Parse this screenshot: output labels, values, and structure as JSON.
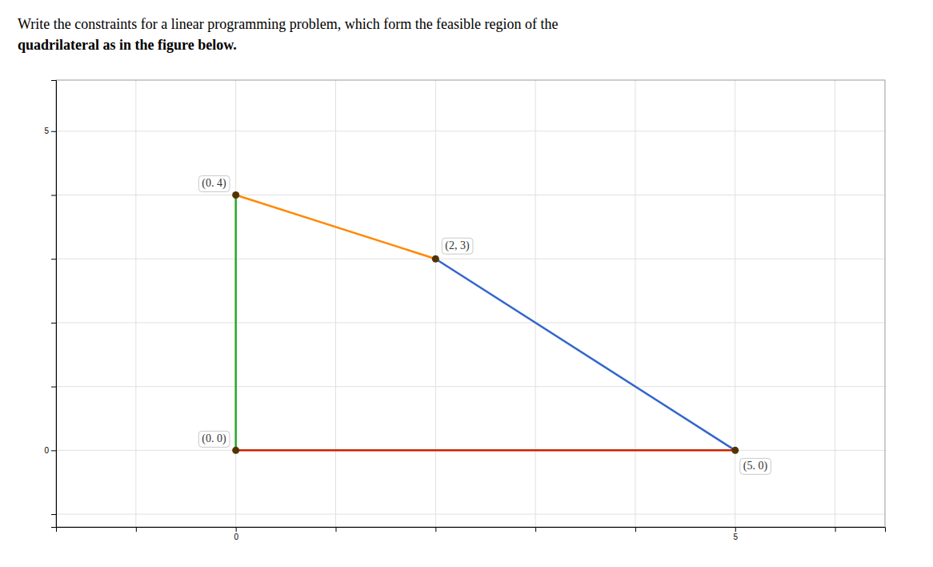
{
  "chart_data": {
    "type": "line",
    "title": "Write the constraints for a linear programming problem, which form the feasible region of the",
    "subtitle": "quadrilateral as in the figure below.",
    "series": [
      {
        "x": [
          0,
          0
        ],
        "values": [
          4,
          0
        ],
        "color": "#22aa22"
      },
      {
        "x": [
          0,
          5
        ],
        "values": [
          0,
          0
        ],
        "color": "#cc2200"
      },
      {
        "x": [
          5,
          2
        ],
        "values": [
          0,
          3
        ],
        "color": "#3366cc"
      },
      {
        "x": [
          2,
          0
        ],
        "values": [
          3,
          4
        ],
        "color": "#ff8800"
      },
      {
        "type": "scatter",
        "x": [
          0,
          2,
          5,
          0
        ],
        "values": [
          4,
          3,
          0,
          0
        ],
        "color": "#553300"
      }
    ],
    "annotations": [
      {
        "text": "(0. 4)",
        "x": 0,
        "y": 4
      },
      {
        "text": "(2, 3)",
        "x": 2,
        "y": 3
      },
      {
        "text": "(5. 0)",
        "x": 5,
        "y": 0
      },
      {
        "text": "(0. 0)",
        "x": 0,
        "y": 0
      }
    ],
    "xlim": [
      -1.8,
      6.5
    ],
    "ylim": [
      -1.2,
      5.8
    ],
    "xticks": [
      {
        "value": -1,
        "label": null
      },
      0,
      {
        "value": 1,
        "label": null
      },
      {
        "value": 2,
        "label": null
      },
      {
        "value": 3,
        "label": null
      },
      {
        "value": 4,
        "label": null
      },
      5,
      {
        "value": 6,
        "label": null
      }
    ],
    "yticks": [
      {
        "value": -1,
        "label": null
      },
      0,
      {
        "value": 1,
        "label": null
      },
      {
        "value": 2,
        "label": null
      },
      {
        "value": 3,
        "label": null
      },
      {
        "value": 4,
        "label": null
      },
      5
    ],
    "grid": true
  }
}
